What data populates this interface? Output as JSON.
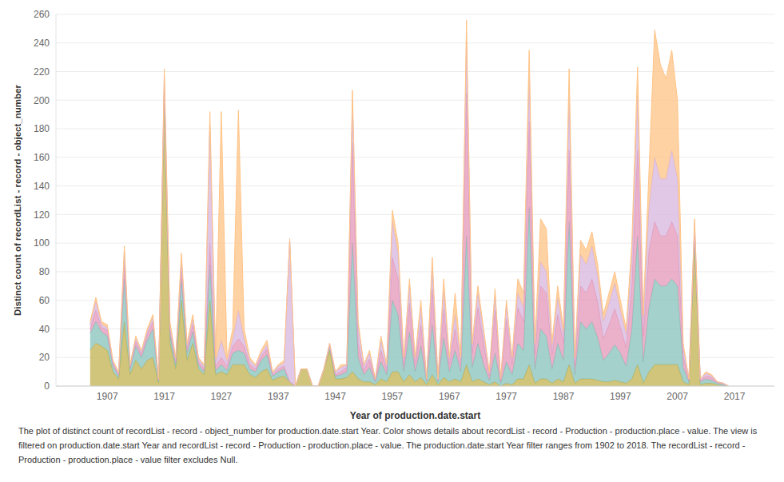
{
  "chart_data": {
    "type": "area",
    "stacked": true,
    "grid": true,
    "x_label": "Year of production.date.start",
    "y_label": "Distinct count of recordList - record - object_number",
    "caption": "The plot of distinct count of recordList - record - object_number for production.date.start Year.  Color shows details about recordList - record - Production - production.place - value. The view is filtered on production.date.start Year and recordList - record - Production - production.place - value. The production.date.start Year filter ranges from 1902 to 2018. The recordList - record - Production - production.place - value filter excludes Null.",
    "x": [
      1904,
      1905,
      1906,
      1907,
      1908,
      1909,
      1910,
      1911,
      1912,
      1913,
      1914,
      1915,
      1916,
      1917,
      1918,
      1919,
      1920,
      1921,
      1922,
      1923,
      1924,
      1925,
      1926,
      1927,
      1928,
      1929,
      1930,
      1931,
      1932,
      1933,
      1934,
      1935,
      1936,
      1937,
      1938,
      1939,
      1940,
      1941,
      1942,
      1943,
      1944,
      1945,
      1946,
      1947,
      1948,
      1949,
      1950,
      1951,
      1952,
      1953,
      1954,
      1955,
      1956,
      1957,
      1958,
      1959,
      1960,
      1961,
      1962,
      1963,
      1964,
      1965,
      1966,
      1967,
      1968,
      1969,
      1970,
      1971,
      1972,
      1973,
      1974,
      1975,
      1976,
      1977,
      1978,
      1979,
      1980,
      1981,
      1982,
      1983,
      1984,
      1985,
      1986,
      1987,
      1988,
      1989,
      1990,
      1991,
      1992,
      1993,
      1994,
      1995,
      1996,
      1997,
      1998,
      1999,
      2000,
      2001,
      2002,
      2003,
      2004,
      2005,
      2006,
      2007,
      2008,
      2009,
      2010,
      2011,
      2012,
      2013,
      2014,
      2015,
      2016
    ],
    "xlim": [
      1898,
      2024
    ],
    "xticks": [
      1907,
      1917,
      1927,
      1937,
      1947,
      1957,
      1967,
      1977,
      1987,
      1997,
      2007,
      2017
    ],
    "ylim": [
      0,
      260
    ],
    "yticks": [
      0,
      20,
      40,
      60,
      80,
      100,
      120,
      140,
      160,
      180,
      200,
      220,
      240,
      260
    ],
    "series": [
      {
        "color": "#c2b14f",
        "values": [
          25,
          30,
          28,
          25,
          10,
          5,
          45,
          8,
          18,
          12,
          18,
          20,
          2,
          200,
          30,
          12,
          60,
          18,
          30,
          12,
          8,
          60,
          8,
          10,
          8,
          15,
          15,
          15,
          8,
          6,
          10,
          12,
          4,
          6,
          7,
          3,
          0,
          12,
          12,
          0,
          0,
          12,
          25,
          5,
          5,
          6,
          10,
          5,
          3,
          3,
          1,
          5,
          3,
          10,
          10,
          3,
          8,
          3,
          6,
          1,
          8,
          1,
          6,
          3,
          5,
          3,
          15,
          3,
          5,
          3,
          1,
          3,
          0,
          2,
          1,
          5,
          5,
          15,
          2,
          5,
          5,
          2,
          5,
          3,
          15,
          2,
          5,
          5,
          5,
          4,
          3,
          3,
          4,
          3,
          2,
          5,
          15,
          2,
          10,
          15,
          15,
          15,
          15,
          15,
          3,
          1,
          100,
          1,
          2,
          2,
          1,
          0,
          0
        ]
      },
      {
        "color": "#86c1b9",
        "values": [
          12,
          15,
          10,
          10,
          4,
          2,
          30,
          4,
          10,
          8,
          14,
          20,
          1,
          5,
          6,
          3,
          15,
          5,
          8,
          3,
          2,
          25,
          3,
          5,
          3,
          8,
          10,
          8,
          4,
          4,
          8,
          10,
          3,
          4,
          5,
          0,
          0,
          0,
          0,
          0,
          0,
          0,
          3,
          2,
          3,
          4,
          90,
          15,
          5,
          10,
          2,
          12,
          5,
          50,
          40,
          7,
          30,
          7,
          22,
          2,
          35,
          2,
          28,
          7,
          20,
          7,
          90,
          10,
          25,
          12,
          3,
          20,
          2,
          15,
          7,
          25,
          20,
          110,
          10,
          35,
          30,
          10,
          25,
          15,
          100,
          6,
          40,
          35,
          40,
          30,
          15,
          20,
          25,
          20,
          12,
          35,
          90,
          15,
          45,
          60,
          55,
          55,
          60,
          55,
          10,
          2,
          5,
          2,
          3,
          2,
          1,
          1,
          0
        ]
      },
      {
        "color": "#e597b8",
        "values": [
          3,
          8,
          3,
          4,
          2,
          1,
          10,
          1,
          3,
          2,
          4,
          5,
          1,
          5,
          3,
          2,
          8,
          3,
          5,
          2,
          2,
          15,
          3,
          5,
          3,
          5,
          8,
          5,
          3,
          2,
          3,
          4,
          1,
          2,
          2,
          0,
          0,
          0,
          0,
          0,
          0,
          0,
          0,
          1,
          2,
          3,
          70,
          10,
          3,
          6,
          1,
          8,
          3,
          30,
          25,
          5,
          20,
          5,
          15,
          1,
          25,
          1,
          20,
          5,
          15,
          5,
          100,
          10,
          25,
          15,
          3,
          30,
          2,
          30,
          7,
          25,
          20,
          60,
          10,
          30,
          30,
          10,
          20,
          12,
          50,
          6,
          25,
          25,
          30,
          25,
          15,
          20,
          25,
          18,
          13,
          30,
          60,
          18,
          40,
          40,
          35,
          35,
          40,
          35,
          8,
          1,
          4,
          1,
          2,
          2,
          1,
          1,
          0
        ]
      },
      {
        "color": "#d7b5de",
        "values": [
          3,
          6,
          2,
          2,
          1,
          1,
          8,
          1,
          2,
          2,
          2,
          3,
          1,
          7,
          3,
          2,
          5,
          2,
          4,
          2,
          2,
          82,
          3,
          12,
          3,
          5,
          20,
          5,
          3,
          2,
          2,
          3,
          1,
          2,
          2,
          100,
          0,
          0,
          0,
          0,
          0,
          0,
          2,
          2,
          3,
          2,
          30,
          12,
          3,
          4,
          1,
          7,
          3,
          25,
          18,
          3,
          12,
          3,
          12,
          1,
          15,
          1,
          12,
          3,
          10,
          3,
          36,
          5,
          10,
          7,
          2,
          10,
          1,
          10,
          4,
          10,
          10,
          30,
          5,
          17,
          15,
          5,
          12,
          6,
          37,
          4,
          22,
          20,
          23,
          18,
          12,
          15,
          18,
          12,
          9,
          20,
          38,
          10,
          30,
          45,
          40,
          40,
          50,
          40,
          6,
          1,
          5,
          1,
          2,
          1,
          0,
          0,
          0
        ]
      },
      {
        "color": "#ffc385",
        "values": [
          2,
          3,
          2,
          2,
          1,
          1,
          5,
          1,
          2,
          1,
          2,
          2,
          0,
          5,
          3,
          1,
          5,
          2,
          3,
          1,
          1,
          10,
          3,
          160,
          3,
          7,
          140,
          7,
          2,
          1,
          2,
          3,
          1,
          1,
          2,
          0,
          0,
          0,
          0,
          0,
          0,
          0,
          0,
          0,
          2,
          0,
          7,
          3,
          1,
          2,
          0,
          3,
          1,
          8,
          7,
          2,
          5,
          2,
          5,
          0,
          7,
          0,
          9,
          2,
          15,
          2,
          15,
          2,
          5,
          3,
          1,
          5,
          0,
          3,
          1,
          10,
          10,
          20,
          3,
          30,
          30,
          3,
          8,
          4,
          20,
          2,
          10,
          10,
          10,
          8,
          5,
          7,
          8,
          7,
          4,
          10,
          20,
          5,
          25,
          89,
          80,
          70,
          70,
          55,
          3,
          0,
          3,
          0,
          1,
          1,
          0,
          0,
          0
        ]
      }
    ]
  }
}
